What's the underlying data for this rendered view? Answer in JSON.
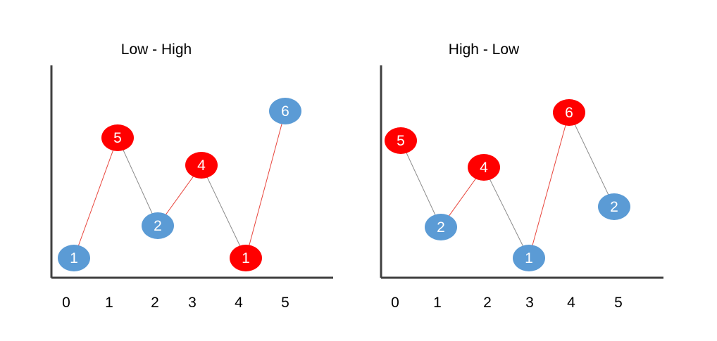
{
  "colors": {
    "blue": "#5b9bd5",
    "red": "#ff0000",
    "gray_line": "#8c8c8c",
    "red_line": "#e8453c",
    "axis": "#3f3f3f",
    "label": "#ffffff"
  },
  "chart_data": [
    {
      "type": "diagram",
      "title": "Low - High",
      "x_ticks": [
        "0",
        "1",
        "2",
        "3",
        "4",
        "5"
      ],
      "nodes": [
        {
          "label": "1",
          "color": "blue"
        },
        {
          "label": "5",
          "color": "red"
        },
        {
          "label": "2",
          "color": "blue"
        },
        {
          "label": "4",
          "color": "red"
        },
        {
          "label": "1",
          "color": "red"
        },
        {
          "label": "6",
          "color": "blue"
        }
      ],
      "edges": [
        {
          "from": 0,
          "to": 1,
          "color": "red_line"
        },
        {
          "from": 1,
          "to": 2,
          "color": "gray_line"
        },
        {
          "from": 2,
          "to": 3,
          "color": "red_line"
        },
        {
          "from": 3,
          "to": 4,
          "color": "gray_line"
        },
        {
          "from": 4,
          "to": 5,
          "color": "red_line"
        }
      ]
    },
    {
      "type": "diagram",
      "title": "High - Low",
      "x_ticks": [
        "0",
        "1",
        "2",
        "3",
        "4",
        "5"
      ],
      "nodes": [
        {
          "label": "5",
          "color": "red"
        },
        {
          "label": "2",
          "color": "blue"
        },
        {
          "label": "4",
          "color": "red"
        },
        {
          "label": "1",
          "color": "blue"
        },
        {
          "label": "6",
          "color": "red"
        },
        {
          "label": "2",
          "color": "blue"
        }
      ],
      "edges": [
        {
          "from": 0,
          "to": 1,
          "color": "gray_line"
        },
        {
          "from": 1,
          "to": 2,
          "color": "red_line"
        },
        {
          "from": 2,
          "to": 3,
          "color": "gray_line"
        },
        {
          "from": 3,
          "to": 4,
          "color": "red_line"
        },
        {
          "from": 4,
          "to": 5,
          "color": "gray_line"
        }
      ]
    }
  ]
}
